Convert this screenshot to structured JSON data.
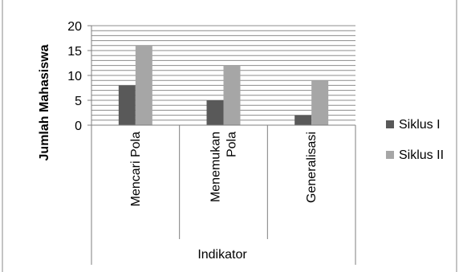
{
  "chart_data": {
    "type": "bar",
    "xlabel": "Indikator",
    "ylabel": "Jumlah Mahasiswa",
    "categories": [
      "Mencari Pola",
      "Menemukan Pola",
      "Generalisasi"
    ],
    "category_lines": [
      [
        "Mencari Pola"
      ],
      [
        "Menemukan",
        "Pola"
      ],
      [
        "Generalisasi"
      ]
    ],
    "series": [
      {
        "name": "Siklus I",
        "values": [
          8,
          5,
          2
        ],
        "color": "#595959"
      },
      {
        "name": "Siklus II",
        "values": [
          16,
          12,
          9
        ],
        "color": "#a6a6a6"
      }
    ],
    "ylim": [
      0,
      20
    ],
    "yticks": [
      0,
      5,
      10,
      15,
      20
    ],
    "grid_step": 1,
    "grid": true,
    "legend_position": "right"
  }
}
